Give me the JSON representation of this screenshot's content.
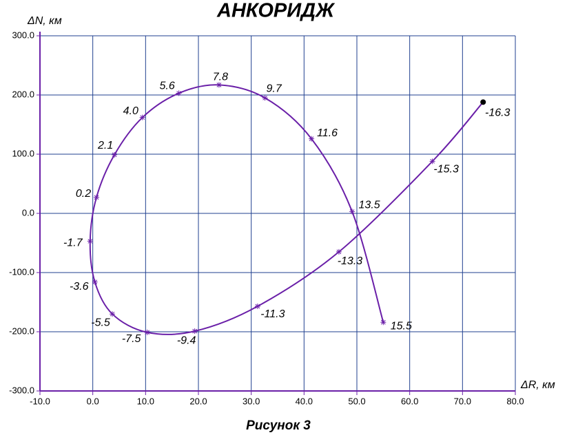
{
  "chart_data": {
    "type": "line",
    "title": "АНКОРИДЖ",
    "caption": "Рисунок 3",
    "x_label": "ΔR, км",
    "y_label": "ΔN, км",
    "xlim": [
      -10,
      80
    ],
    "ylim": [
      -300,
      300
    ],
    "xticks": [
      {
        "value": -10,
        "label": "-10.0"
      },
      {
        "value": 0,
        "label": "0.0"
      },
      {
        "value": 10,
        "label": "10.0"
      },
      {
        "value": 20,
        "label": "20.0"
      },
      {
        "value": 30,
        "label": "30.0"
      },
      {
        "value": 40,
        "label": "40.0"
      },
      {
        "value": 50,
        "label": "50.0"
      },
      {
        "value": 60,
        "label": "60.0"
      },
      {
        "value": 70,
        "label": "70.0"
      },
      {
        "value": 80,
        "label": "80.0"
      }
    ],
    "yticks": [
      {
        "value": -300,
        "label": "-300.0"
      },
      {
        "value": -200,
        "label": "-200.0"
      },
      {
        "value": -100,
        "label": "-100.0"
      },
      {
        "value": 0,
        "label": "0.0"
      },
      {
        "value": 100,
        "label": "100.0"
      },
      {
        "value": 200,
        "label": "200.0"
      },
      {
        "value": 300,
        "label": "300.0"
      }
    ],
    "grid": true,
    "grid_color": "#1f3f8f",
    "series": [
      {
        "color": "#6a1fa8",
        "x": [
          73.9,
          64.3,
          46.6,
          31.2,
          19.3,
          10.3,
          3.7,
          0.4,
          -0.5,
          0.7,
          4.1,
          9.4,
          16.3,
          23.9,
          32.6,
          41.4,
          49.1,
          55
        ],
        "values": [
          188,
          88,
          -65,
          -157,
          -199,
          -201,
          -170,
          -116,
          -47,
          27,
          99,
          162,
          203,
          217,
          195,
          126,
          3,
          -184
        ],
        "point_labels": [
          "-16.3",
          "-15.3",
          "-13.3",
          "-11.3",
          "-9.4",
          "-7.5",
          "-5.5",
          "-3.6",
          "-1.7",
          "0.2",
          "2.1",
          "4.0",
          "5.6",
          "7.8",
          "9.7",
          "11.6",
          "13.5",
          "15.5"
        ]
      }
    ]
  }
}
